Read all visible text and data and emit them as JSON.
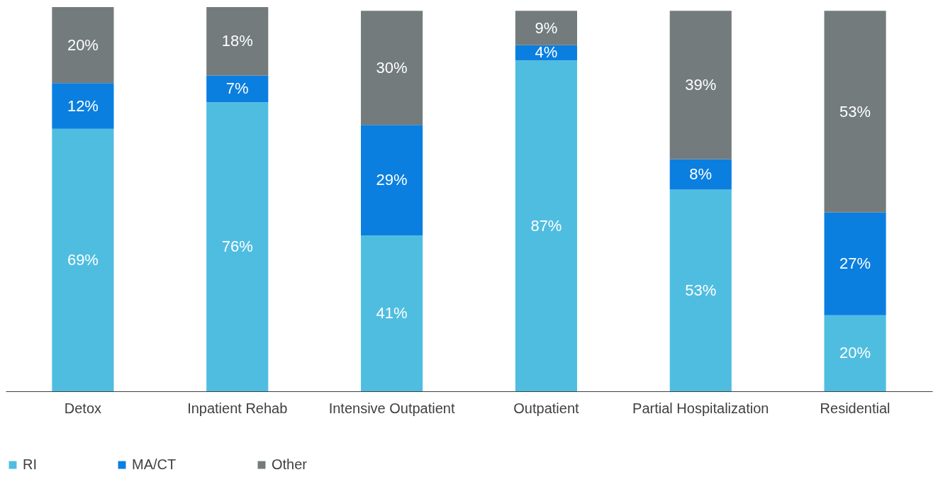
{
  "chart_data": {
    "type": "bar",
    "stacked": true,
    "legend": "bottom",
    "categories": [
      "Detox",
      "Inpatient Rehab",
      "Intensive Outpatient",
      "Outpatient",
      "Partial Hospitalization",
      "Residential"
    ],
    "series": [
      {
        "name": "RI",
        "color": "#4fbde0",
        "values": [
          69,
          76,
          41,
          87,
          53,
          20
        ],
        "value_labels": [
          "69%",
          "76%",
          "41%",
          "87%",
          "53%",
          "20%"
        ]
      },
      {
        "name": "MA/CT",
        "color": "#0a7fe0",
        "values": [
          12,
          7,
          29,
          4,
          8,
          27
        ],
        "value_labels": [
          "12%",
          "7%",
          "29%",
          "4%",
          "8%",
          "27%"
        ]
      },
      {
        "name": "Other",
        "color": "#737b7d",
        "values": [
          20,
          18,
          30,
          9,
          39,
          53
        ],
        "value_labels": [
          "20%",
          "18%",
          "30%",
          "9%",
          "39%",
          "53%"
        ]
      }
    ]
  }
}
